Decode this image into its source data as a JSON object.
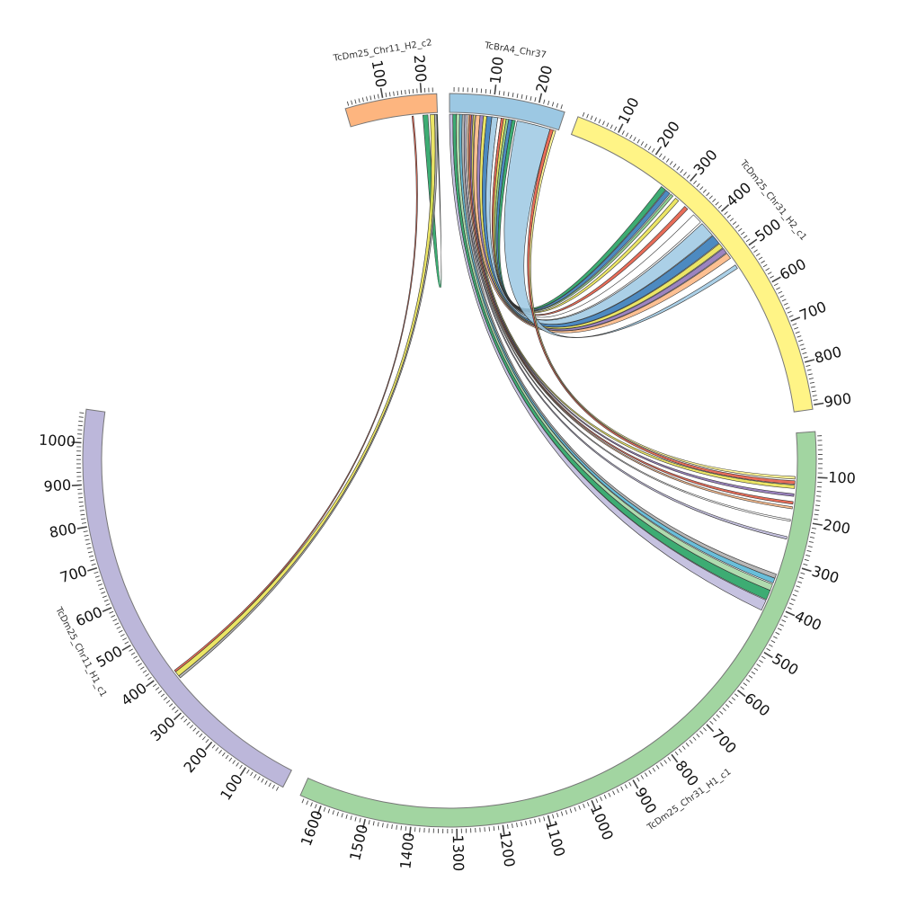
{
  "chart_data": {
    "type": "chord",
    "segments": [
      {
        "id": "chr11h2",
        "name": "TcDm25_Chr11_H2_c2",
        "length": 240,
        "color": "#FDB57F",
        "tick_labels": [
          "100",
          "200"
        ]
      },
      {
        "id": "brA4",
        "name": "TcBrA4_Chr37",
        "length": 260,
        "color": "#9CC8E3",
        "tick_labels": [
          "100",
          "200"
        ]
      },
      {
        "id": "chr31h2",
        "name": "TcDm25_Chr31_H2_c1",
        "length": 910,
        "color": "#FFF486",
        "tick_labels": [
          "100",
          "200",
          "300",
          "400",
          "500",
          "600",
          "700",
          "800",
          "900"
        ]
      },
      {
        "id": "chr31h1",
        "name": "TcDm25_Chr31_H1_c1",
        "length": 1650,
        "color": "#A2D5A1",
        "tick_labels": [
          "100",
          "200",
          "300",
          "400",
          "500",
          "600",
          "700",
          "800",
          "900",
          "1000",
          "1100",
          "1200",
          "1300",
          "1400",
          "1500",
          "1600"
        ]
      },
      {
        "id": "chr11h1",
        "name": "TcDm25_Chr11_H1_c1",
        "length": 1080,
        "color": "#BCB7DA",
        "tick_labels": [
          "100",
          "200",
          "300",
          "400",
          "500",
          "600",
          "700",
          "800",
          "900",
          "1000"
        ]
      }
    ],
    "links": [
      {
        "from": "brA4",
        "fs": 0,
        "fe": 8,
        "to": "chr31h1",
        "ts": 395,
        "te": 420,
        "color": "#BCB7DA"
      },
      {
        "from": "brA4",
        "fs": 8,
        "fe": 16,
        "to": "chr31h1",
        "ts": 370,
        "te": 393,
        "color": "#1B9E5A"
      },
      {
        "from": "brA4",
        "fs": 16,
        "fe": 24,
        "to": "chr31h1",
        "ts": 355,
        "te": 370,
        "color": "#A2D5A1"
      },
      {
        "from": "brA4",
        "fs": 24,
        "fe": 30,
        "to": "chr31h1",
        "ts": 340,
        "te": 352,
        "color": "#4EB3D3"
      },
      {
        "from": "brA4",
        "fs": 30,
        "fe": 36,
        "to": "chr31h1",
        "ts": 330,
        "te": 340,
        "color": "#AAAAAA"
      },
      {
        "from": "brA4",
        "fs": 36,
        "fe": 40,
        "to": "chr31h1",
        "ts": 240,
        "te": 246,
        "color": "#BCB7DA"
      },
      {
        "from": "brA4",
        "fs": 40,
        "fe": 44,
        "to": "chr31h1",
        "ts": 200,
        "te": 204,
        "color": "#FFFFFF"
      },
      {
        "from": "brA4",
        "fs": 44,
        "fe": 48,
        "to": "chr31h1",
        "ts": 170,
        "te": 175,
        "color": "#FDB57F"
      },
      {
        "from": "brA4",
        "fs": 48,
        "fe": 52,
        "to": "chr31h1",
        "ts": 158,
        "te": 164,
        "color": "#E5533C"
      },
      {
        "from": "brA4",
        "fs": 52,
        "fe": 56,
        "to": "chr31h1",
        "ts": 140,
        "te": 146,
        "color": "#8B6FB5"
      },
      {
        "from": "brA4",
        "fs": 56,
        "fe": 60,
        "to": "chr31h1",
        "ts": 120,
        "te": 128,
        "color": "#E8E14A"
      },
      {
        "from": "brA4",
        "fs": 62,
        "fe": 72,
        "to": "chr31h2",
        "ts": 485,
        "te": 500,
        "color": "#FDB57F"
      },
      {
        "from": "brA4",
        "fs": 72,
        "fe": 80,
        "to": "chr31h2",
        "ts": 470,
        "te": 483,
        "color": "#8B6FB5"
      },
      {
        "from": "brA4",
        "fs": 80,
        "fe": 88,
        "to": "chr31h2",
        "ts": 455,
        "te": 468,
        "color": "#E8E14A"
      },
      {
        "from": "brA4",
        "fs": 88,
        "fe": 100,
        "to": "chr31h2",
        "ts": 430,
        "te": 453,
        "color": "#2E75B6"
      },
      {
        "from": "brA4",
        "fs": 100,
        "fe": 114,
        "to": "chr31h2",
        "ts": 390,
        "te": 428,
        "color": "#9CC8E3"
      },
      {
        "from": "brA4",
        "fs": 114,
        "fe": 122,
        "to": "chr31h2",
        "ts": 360,
        "te": 385,
        "color": "#FFFFFF"
      },
      {
        "from": "brA4",
        "fs": 122,
        "fe": 128,
        "to": "chr31h2",
        "ts": 330,
        "te": 340,
        "color": "#E5533C"
      },
      {
        "from": "brA4",
        "fs": 128,
        "fe": 134,
        "to": "chr31h2",
        "ts": 300,
        "te": 310,
        "color": "#E8E14A"
      },
      {
        "from": "brA4",
        "fs": 134,
        "fe": 140,
        "to": "chr31h2",
        "ts": 285,
        "te": 292,
        "color": "#7FC97F"
      },
      {
        "from": "brA4",
        "fs": 140,
        "fe": 148,
        "to": "chr31h2",
        "ts": 270,
        "te": 282,
        "color": "#2E75B6"
      },
      {
        "from": "brA4",
        "fs": 148,
        "fe": 156,
        "to": "chr31h2",
        "ts": 255,
        "te": 268,
        "color": "#1B9E5A"
      },
      {
        "from": "brA4",
        "fs": 160,
        "fe": 240,
        "to": "chr31h2",
        "ts": 520,
        "te": 530,
        "color": "#9CC8E3"
      },
      {
        "from": "brA4",
        "fs": 240,
        "fe": 248,
        "to": "chr31h1",
        "ts": 110,
        "te": 118,
        "color": "#E5533C"
      },
      {
        "from": "brA4",
        "fs": 248,
        "fe": 254,
        "to": "chr31h1",
        "ts": 100,
        "te": 106,
        "color": "#FFF486"
      },
      {
        "from": "chr11h2",
        "fs": 200,
        "fe": 214,
        "to": "chr11h2",
        "ts": 238,
        "te": 240,
        "color": "#1B9E5A"
      },
      {
        "from": "chr11h2",
        "fs": 170,
        "fe": 174,
        "to": "chr11h1",
        "ts": 385,
        "te": 390,
        "color": "#E5533C"
      },
      {
        "from": "chr11h2",
        "fs": 220,
        "fe": 232,
        "to": "chr11h1",
        "ts": 372,
        "te": 385,
        "color": "#E8E14A"
      },
      {
        "from": "chr11h2",
        "fs": 232,
        "fe": 238,
        "to": "chr11h1",
        "ts": 366,
        "te": 372,
        "color": "#AAAAAA"
      }
    ]
  }
}
